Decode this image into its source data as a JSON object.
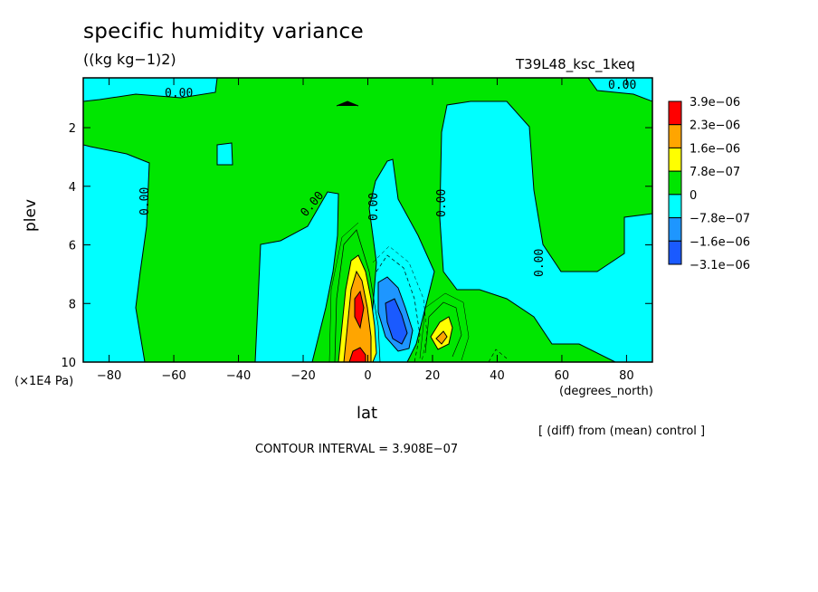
{
  "chart_data": {
    "type": "heatmap",
    "title": "specific humidity variance",
    "units": "((kg kg−1)2)",
    "run_label": "T39L48_ksc_1keq",
    "xlabel": "lat",
    "xunit": "(degrees_north)",
    "ylabel": "plev",
    "yunit": "(×1E4 Pa)",
    "xlim": [
      -88,
      88
    ],
    "ylim": [
      10,
      0.3
    ],
    "x_ticks": [
      -80,
      -60,
      -40,
      -20,
      0,
      20,
      40,
      60,
      80
    ],
    "x_tick_labels": [
      "−80",
      "−60",
      "−40",
      "−20",
      "0",
      "20",
      "40",
      "60",
      "80"
    ],
    "y_ticks": [
      2,
      4,
      6,
      8,
      10
    ],
    "y_tick_labels": [
      "2",
      "4",
      "6",
      "8",
      "10"
    ],
    "colorbar": {
      "levels": [
        -3.1e-06,
        -1.6e-06,
        -7.8e-07,
        0,
        7.8e-07,
        1.6e-06,
        2.3e-06,
        3.9e-06
      ],
      "labels": [
        "−3.1e−06",
        "−1.6e−06",
        "−7.8e−07",
        "0",
        "7.8e−07",
        "1.6e−06",
        "2.3e−06",
        "3.9e−06"
      ],
      "colors": [
        "#1a5aff",
        "#1e96ff",
        "#00ffff",
        "#00e600",
        "#ffff00",
        "#ffa500",
        "#ff0000"
      ]
    },
    "contour_labels": [
      "0.00",
      "0.00",
      "0.00",
      "0.00",
      "0.00",
      "0.00",
      "0.00"
    ],
    "note": "[ (diff) from (mean) control ]",
    "contour_interval": "CONTOUR INTERVAL = 3.908E−07"
  }
}
